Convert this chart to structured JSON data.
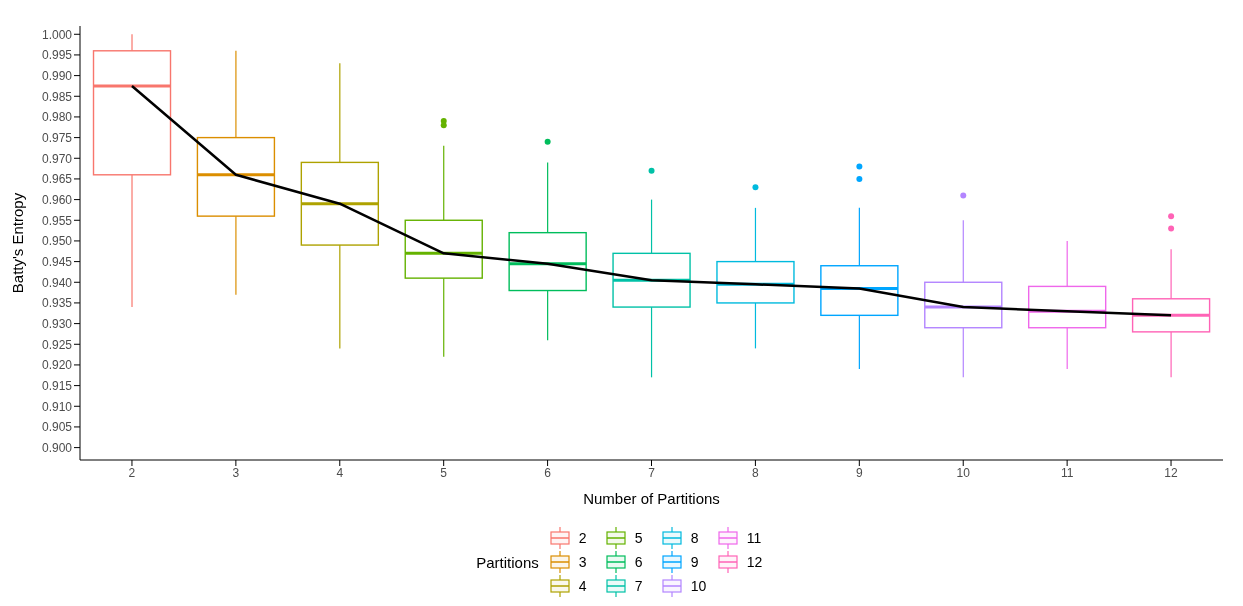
{
  "chart_data": {
    "type": "box",
    "xlabel": "Number of Partitions",
    "ylabel": "Batty's Entropy",
    "legend_title": "Partitions",
    "legend": "bottom",
    "grid": false,
    "categories": [
      "2",
      "3",
      "4",
      "5",
      "6",
      "7",
      "8",
      "9",
      "10",
      "11",
      "12"
    ],
    "series": [
      {
        "name": "2",
        "color": "#f8766d",
        "boxes": [
          {
            "low": 0.934,
            "q1": 0.966,
            "median": 0.9875,
            "q3": 0.996,
            "high": 1.0
          },
          null,
          null,
          null,
          null,
          null,
          null,
          null,
          null,
          null,
          null
        ]
      },
      {
        "name": "3",
        "color": "#db8e00",
        "boxes": [
          null,
          {
            "low": 0.937,
            "q1": 0.956,
            "median": 0.966,
            "q3": 0.975,
            "high": 0.996
          },
          null,
          null,
          null,
          null,
          null,
          null,
          null,
          null,
          null
        ]
      },
      {
        "name": "4",
        "color": "#aea200",
        "boxes": [
          null,
          null,
          {
            "low": 0.924,
            "q1": 0.949,
            "median": 0.959,
            "q3": 0.969,
            "high": 0.993
          },
          null,
          null,
          null,
          null,
          null,
          null,
          null,
          null
        ]
      },
      {
        "name": "5",
        "color": "#64b200",
        "boxes": [
          null,
          null,
          null,
          {
            "low": 0.922,
            "q1": 0.941,
            "median": 0.947,
            "q3": 0.955,
            "high": 0.973,
            "outliers": [
              0.978,
              0.979
            ]
          },
          null,
          null,
          null,
          null,
          null,
          null,
          null
        ]
      },
      {
        "name": "6",
        "color": "#00bd5c",
        "boxes": [
          null,
          null,
          null,
          null,
          {
            "low": 0.926,
            "q1": 0.938,
            "median": 0.9445,
            "q3": 0.952,
            "high": 0.969,
            "outliers": [
              0.974
            ]
          },
          null,
          null,
          null,
          null,
          null,
          null
        ]
      },
      {
        "name": "7",
        "color": "#00c1a7",
        "boxes": [
          null,
          null,
          null,
          null,
          null,
          {
            "low": 0.917,
            "q1": 0.934,
            "median": 0.9405,
            "q3": 0.947,
            "high": 0.96,
            "outliers": [
              0.967
            ]
          },
          null,
          null,
          null,
          null,
          null
        ]
      },
      {
        "name": "8",
        "color": "#00bade",
        "boxes": [
          null,
          null,
          null,
          null,
          null,
          null,
          {
            "low": 0.924,
            "q1": 0.935,
            "median": 0.9395,
            "q3": 0.945,
            "high": 0.958,
            "outliers": [
              0.963
            ]
          },
          null,
          null,
          null,
          null
        ]
      },
      {
        "name": "9",
        "color": "#00a6ff",
        "boxes": [
          null,
          null,
          null,
          null,
          null,
          null,
          null,
          {
            "low": 0.919,
            "q1": 0.932,
            "median": 0.9385,
            "q3": 0.944,
            "high": 0.958,
            "outliers": [
              0.965,
              0.968
            ]
          },
          null,
          null,
          null
        ]
      },
      {
        "name": "10",
        "color": "#b385ff",
        "boxes": [
          null,
          null,
          null,
          null,
          null,
          null,
          null,
          null,
          {
            "low": 0.917,
            "q1": 0.929,
            "median": 0.934,
            "q3": 0.94,
            "high": 0.955,
            "outliers": [
              0.961
            ]
          },
          null,
          null
        ]
      },
      {
        "name": "11",
        "color": "#ef67eb",
        "boxes": [
          null,
          null,
          null,
          null,
          null,
          null,
          null,
          null,
          null,
          {
            "low": 0.919,
            "q1": 0.929,
            "median": 0.933,
            "q3": 0.939,
            "high": 0.95
          },
          null
        ]
      },
      {
        "name": "12",
        "color": "#ff63b6",
        "boxes": [
          null,
          null,
          null,
          null,
          null,
          null,
          null,
          null,
          null,
          null,
          {
            "low": 0.917,
            "q1": 0.928,
            "median": 0.932,
            "q3": 0.936,
            "high": 0.948,
            "outliers": [
              0.953,
              0.956
            ]
          }
        ]
      },
      {
        "type": "line",
        "color": "#000000",
        "values": [
          0.9875,
          0.966,
          0.959,
          0.947,
          0.9445,
          0.9405,
          0.9395,
          0.9385,
          0.934,
          0.933,
          0.932
        ]
      }
    ],
    "ylim": [
      0.897,
      1.002
    ],
    "yticks": [
      {
        "value": 0.9,
        "label": "0.900"
      },
      {
        "value": 0.905,
        "label": "0.905"
      },
      {
        "value": 0.91,
        "label": "0.910"
      },
      {
        "value": 0.915,
        "label": "0.915"
      },
      {
        "value": 0.92,
        "label": "0.920"
      },
      {
        "value": 0.925,
        "label": "0.925"
      },
      {
        "value": 0.93,
        "label": "0.930"
      },
      {
        "value": 0.935,
        "label": "0.935"
      },
      {
        "value": 0.94,
        "label": "0.940"
      },
      {
        "value": 0.945,
        "label": "0.945"
      },
      {
        "value": 0.95,
        "label": "0.950"
      },
      {
        "value": 0.955,
        "label": "0.955"
      },
      {
        "value": 0.96,
        "label": "0.960"
      },
      {
        "value": 0.965,
        "label": "0.965"
      },
      {
        "value": 0.97,
        "label": "0.970"
      },
      {
        "value": 0.975,
        "label": "0.975"
      },
      {
        "value": 0.98,
        "label": "0.980"
      },
      {
        "value": 0.985,
        "label": "0.985"
      },
      {
        "value": 0.99,
        "label": "0.990"
      },
      {
        "value": 0.995,
        "label": "0.995"
      },
      {
        "value": 1.0,
        "label": "1.000"
      }
    ]
  }
}
